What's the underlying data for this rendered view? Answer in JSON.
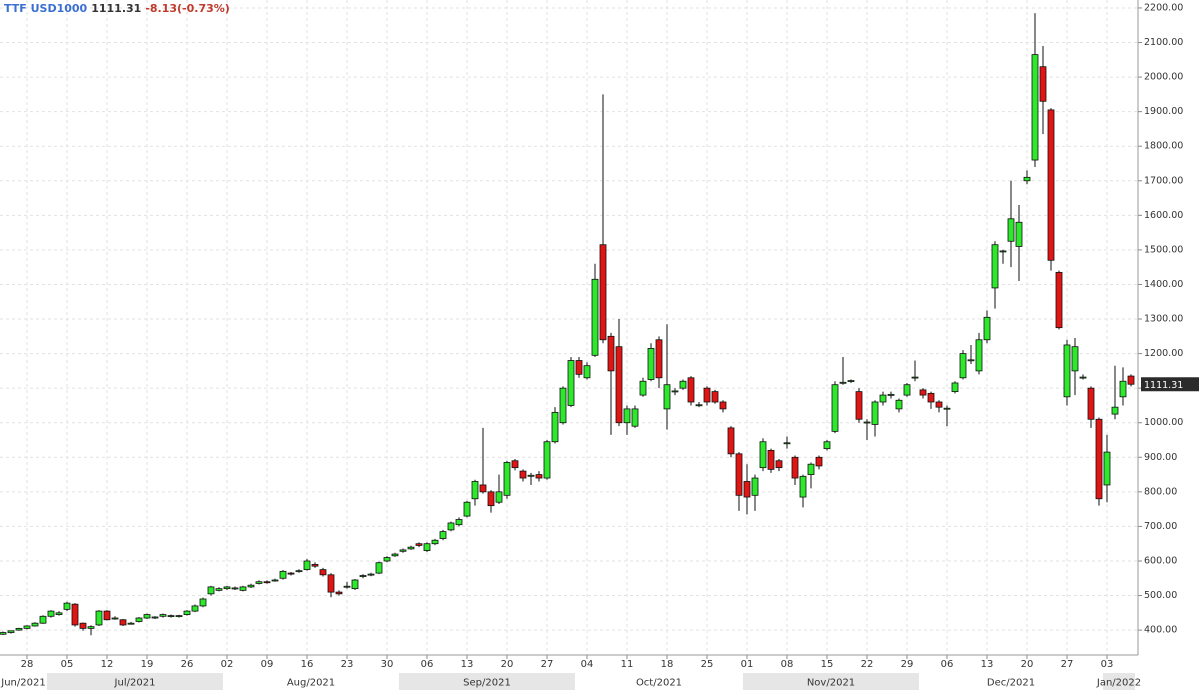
{
  "header": {
    "symbol": "TTF USD1000",
    "change": "-8.13(-0.73%)"
  },
  "chart_data": {
    "type": "candlestick",
    "x": [
      "2021-06-23",
      "2021-06-24",
      "2021-06-25",
      "2021-06-28",
      "2021-06-29",
      "2021-06-30",
      "2021-07-01",
      "2021-07-02",
      "2021-07-05",
      "2021-07-06",
      "2021-07-07",
      "2021-07-08",
      "2021-07-09",
      "2021-07-12",
      "2021-07-13",
      "2021-07-14",
      "2021-07-15",
      "2021-07-16",
      "2021-07-19",
      "2021-07-20",
      "2021-07-21",
      "2021-07-22",
      "2021-07-23",
      "2021-07-26",
      "2021-07-27",
      "2021-07-28",
      "2021-07-29",
      "2021-07-30",
      "2021-08-02",
      "2021-08-03",
      "2021-08-04",
      "2021-08-05",
      "2021-08-06",
      "2021-08-09",
      "2021-08-10",
      "2021-08-11",
      "2021-08-12",
      "2021-08-13",
      "2021-08-16",
      "2021-08-17",
      "2021-08-18",
      "2021-08-19",
      "2021-08-20",
      "2021-08-23",
      "2021-08-24",
      "2021-08-25",
      "2021-08-26",
      "2021-08-27",
      "2021-08-30",
      "2021-08-31",
      "2021-09-01",
      "2021-09-02",
      "2021-09-03",
      "2021-09-06",
      "2021-09-07",
      "2021-09-08",
      "2021-09-09",
      "2021-09-10",
      "2021-09-13",
      "2021-09-14",
      "2021-09-15",
      "2021-09-16",
      "2021-09-17",
      "2021-09-20",
      "2021-09-21",
      "2021-09-22",
      "2021-09-23",
      "2021-09-24",
      "2021-09-27",
      "2021-09-28",
      "2021-09-29",
      "2021-09-30",
      "2021-10-01",
      "2021-10-04",
      "2021-10-05",
      "2021-10-06",
      "2021-10-07",
      "2021-10-08",
      "2021-10-11",
      "2021-10-12",
      "2021-10-13",
      "2021-10-14",
      "2021-10-15",
      "2021-10-18",
      "2021-10-19",
      "2021-10-20",
      "2021-10-21",
      "2021-10-22",
      "2021-10-25",
      "2021-10-26",
      "2021-10-27",
      "2021-10-28",
      "2021-10-29",
      "2021-11-01",
      "2021-11-02",
      "2021-11-03",
      "2021-11-04",
      "2021-11-05",
      "2021-11-08",
      "2021-11-09",
      "2021-11-10",
      "2021-11-11",
      "2021-11-12",
      "2021-11-15",
      "2021-11-16",
      "2021-11-17",
      "2021-11-18",
      "2021-11-19",
      "2021-11-22",
      "2021-11-23",
      "2021-11-24",
      "2021-11-25",
      "2021-11-26",
      "2021-11-29",
      "2021-11-30",
      "2021-12-01",
      "2021-12-02",
      "2021-12-03",
      "2021-12-06",
      "2021-12-07",
      "2021-12-08",
      "2021-12-09",
      "2021-12-10",
      "2021-12-13",
      "2021-12-14",
      "2021-12-15",
      "2021-12-16",
      "2021-12-17",
      "2021-12-20",
      "2021-12-21",
      "2021-12-22",
      "2021-12-23",
      "2021-12-24",
      "2021-12-27",
      "2021-12-28",
      "2021-12-29",
      "2021-12-30",
      "2021-12-31",
      "2022-01-03",
      "2022-01-04",
      "2022-01-05",
      "2022-01-06"
    ],
    "series": [
      {
        "name": "TTF USD1000",
        "up_color": "#2ee82e",
        "down_color": "#e01515",
        "open": [
          388,
          393,
          400,
          405,
          412,
          420,
          440,
          445,
          460,
          475,
          420,
          405,
          415,
          455,
          435,
          430,
          420,
          425,
          435,
          435,
          440,
          440,
          440,
          445,
          455,
          470,
          505,
          515,
          520,
          520,
          515,
          525,
          535,
          540,
          545,
          550,
          565,
          570,
          575,
          590,
          575,
          560,
          510,
          525,
          520,
          555,
          560,
          565,
          600,
          615,
          628,
          635,
          650,
          630,
          650,
          665,
          690,
          705,
          730,
          780,
          820,
          800,
          770,
          790,
          890,
          860,
          845,
          850,
          840,
          945,
          1000,
          1050,
          1180,
          1130,
          1195,
          1515,
          1250,
          1220,
          1000,
          990,
          1080,
          1125,
          1240,
          1040,
          1090,
          1100,
          1130,
          1050,
          1100,
          1090,
          1060,
          985,
          910,
          830,
          790,
          870,
          920,
          890,
          940,
          900,
          785,
          850,
          900,
          925,
          975,
          1115,
          1120,
          1090,
          1000,
          995,
          1060,
          1080,
          1040,
          1080,
          1130,
          1095,
          1085,
          1060,
          1040,
          1090,
          1130,
          1180,
          1150,
          1240,
          1390,
          1495,
          1525,
          1510,
          1700,
          1760,
          2030,
          1905,
          1435,
          1075,
          1150,
          1130,
          1100,
          1010,
          820,
          1025,
          1075,
          1135
        ],
        "high": [
          396,
          399,
          407,
          414,
          423,
          443,
          458,
          455,
          482,
          478,
          422,
          414,
          458,
          458,
          440,
          432,
          424,
          438,
          448,
          440,
          448,
          445,
          444,
          458,
          474,
          494,
          528,
          524,
          528,
          526,
          528,
          534,
          544,
          544,
          549,
          574,
          568,
          576,
          606,
          596,
          580,
          565,
          515,
          540,
          548,
          562,
          566,
          598,
          614,
          624,
          636,
          644,
          654,
          654,
          664,
          690,
          714,
          726,
          774,
          835,
          985,
          805,
          850,
          890,
          895,
          865,
          855,
          860,
          950,
          1045,
          1105,
          1190,
          1190,
          1175,
          1460,
          1950,
          1260,
          1300,
          1050,
          1050,
          1130,
          1230,
          1250,
          1285,
          1100,
          1125,
          1135,
          1060,
          1105,
          1095,
          1065,
          990,
          915,
          880,
          850,
          955,
          925,
          895,
          960,
          905,
          850,
          885,
          905,
          950,
          1120,
          1190,
          1125,
          1100,
          1010,
          1065,
          1090,
          1090,
          1070,
          1115,
          1180,
          1100,
          1090,
          1065,
          1050,
          1120,
          1210,
          1225,
          1260,
          1325,
          1525,
          1500,
          1700,
          1630,
          1730,
          2185,
          2090,
          1910,
          1440,
          1240,
          1245,
          1140,
          1105,
          1015,
          965,
          1165,
          1160,
          1140
        ],
        "low": [
          386,
          390,
          398,
          402,
          410,
          418,
          436,
          442,
          455,
          410,
          398,
          385,
          412,
          428,
          430,
          412,
          416,
          422,
          432,
          432,
          436,
          436,
          436,
          442,
          452,
          466,
          500,
          512,
          516,
          516,
          512,
          522,
          532,
          534,
          540,
          546,
          558,
          566,
          572,
          580,
          555,
          495,
          500,
          520,
          516,
          550,
          556,
          562,
          596,
          612,
          624,
          632,
          640,
          626,
          646,
          660,
          686,
          700,
          726,
          760,
          795,
          740,
          765,
          780,
          862,
          830,
          820,
          830,
          835,
          940,
          995,
          1045,
          1130,
          1125,
          1190,
          1230,
          965,
          990,
          965,
          985,
          1075,
          1120,
          1100,
          980,
          1080,
          1095,
          1050,
          1045,
          1050,
          1055,
          1030,
          900,
          745,
          735,
          745,
          860,
          855,
          860,
          925,
          820,
          755,
          810,
          865,
          920,
          970,
          1110,
          1115,
          1000,
          950,
          960,
          1050,
          1070,
          1030,
          1075,
          1120,
          1070,
          1040,
          1030,
          990,
          1085,
          1125,
          1170,
          1140,
          1230,
          1330,
          1460,
          1450,
          1410,
          1690,
          1740,
          1835,
          1440,
          1270,
          1050,
          1080,
          1125,
          985,
          760,
          770,
          1010,
          1050,
          1105
        ],
        "close": [
          393,
          398,
          405,
          412,
          420,
          440,
          455,
          450,
          478,
          415,
          405,
          410,
          455,
          430,
          435,
          415,
          420,
          435,
          445,
          438,
          445,
          442,
          442,
          455,
          470,
          490,
          525,
          520,
          525,
          522,
          525,
          530,
          540,
          538,
          545,
          570,
          562,
          572,
          600,
          585,
          560,
          510,
          505,
          527,
          545,
          558,
          562,
          595,
          610,
          620,
          632,
          640,
          645,
          650,
          660,
          685,
          710,
          720,
          770,
          830,
          800,
          760,
          800,
          885,
          870,
          840,
          848,
          840,
          945,
          1030,
          1100,
          1180,
          1140,
          1165,
          1415,
          1240,
          1150,
          1000,
          1040,
          1040,
          1120,
          1215,
          1130,
          1110,
          1092,
          1120,
          1060,
          1052,
          1060,
          1060,
          1040,
          910,
          790,
          785,
          840,
          945,
          865,
          870,
          942,
          840,
          845,
          880,
          875,
          945,
          1110,
          1117,
          1122,
          1010,
          1002,
          1060,
          1080,
          1082,
          1065,
          1110,
          1132,
          1080,
          1060,
          1045,
          1042,
          1115,
          1200,
          1182,
          1240,
          1305,
          1515,
          1497,
          1590,
          1580,
          1710,
          2065,
          1930,
          1470,
          1275,
          1225,
          1220,
          1132,
          1010,
          780,
          915,
          1045,
          1120,
          1111.31
        ]
      }
    ],
    "ylim": [
      328,
      2223
    ],
    "yticks": [
      {
        "value": 400,
        "label": "400.00"
      },
      {
        "value": 500,
        "label": "500.00"
      },
      {
        "value": 600,
        "label": "600.00"
      },
      {
        "value": 700,
        "label": "700.00"
      },
      {
        "value": 800,
        "label": "800.00"
      },
      {
        "value": 900,
        "label": "900.00"
      },
      {
        "value": 1000,
        "label": "1000.00"
      },
      {
        "value": 1100,
        "label": "1100.00"
      },
      {
        "value": 1200,
        "label": "1200.00"
      },
      {
        "value": 1300,
        "label": "1300.00"
      },
      {
        "value": 1400,
        "label": "1400.00"
      },
      {
        "value": 1500,
        "label": "1500.00"
      },
      {
        "value": 1600,
        "label": "1600.00"
      },
      {
        "value": 1700,
        "label": "1700.00"
      },
      {
        "value": 1800,
        "label": "1800.00"
      },
      {
        "value": 1900,
        "label": "1900.00"
      },
      {
        "value": 2000,
        "label": "2000.00"
      },
      {
        "value": 2100,
        "label": "2100.00"
      },
      {
        "value": 2200,
        "label": "2200.00"
      }
    ],
    "xticks": [
      {
        "value": "2021-06-28",
        "label": "28"
      },
      {
        "value": "2021-07-05",
        "label": "05"
      },
      {
        "value": "2021-07-12",
        "label": "12"
      },
      {
        "value": "2021-07-19",
        "label": "19"
      },
      {
        "value": "2021-07-26",
        "label": "26"
      },
      {
        "value": "2021-08-02",
        "label": "02"
      },
      {
        "value": "2021-08-09",
        "label": "09"
      },
      {
        "value": "2021-08-16",
        "label": "16"
      },
      {
        "value": "2021-08-23",
        "label": "23"
      },
      {
        "value": "2021-08-30",
        "label": "30"
      },
      {
        "value": "2021-09-06",
        "label": "06"
      },
      {
        "value": "2021-09-13",
        "label": "13"
      },
      {
        "value": "2021-09-20",
        "label": "20"
      },
      {
        "value": "2021-09-27",
        "label": "27"
      },
      {
        "value": "2021-10-04",
        "label": "04"
      },
      {
        "value": "2021-10-11",
        "label": "11"
      },
      {
        "value": "2021-10-18",
        "label": "18"
      },
      {
        "value": "2021-10-25",
        "label": "25"
      },
      {
        "value": "2021-11-01",
        "label": "01"
      },
      {
        "value": "2021-11-08",
        "label": "08"
      },
      {
        "value": "2021-11-15",
        "label": "15"
      },
      {
        "value": "2021-11-22",
        "label": "22"
      },
      {
        "value": "2021-11-29",
        "label": "29"
      },
      {
        "value": "2021-12-06",
        "label": "06"
      },
      {
        "value": "2021-12-13",
        "label": "13"
      },
      {
        "value": "2021-12-20",
        "label": "20"
      },
      {
        "value": "2021-12-27",
        "label": "27"
      },
      {
        "value": "2022-01-03",
        "label": "03"
      }
    ],
    "month_ticks": [
      {
        "value": "2021-06-23",
        "label": "Jun/2021"
      },
      {
        "value": "2021-07-01",
        "label": "Jul/2021"
      },
      {
        "value": "2021-08-02",
        "label": "Aug/2021"
      },
      {
        "value": "2021-09-01",
        "label": "Sep/2021"
      },
      {
        "value": "2021-10-01",
        "label": "Oct/2021"
      },
      {
        "value": "2021-11-01",
        "label": "Nov/2021"
      },
      {
        "value": "2021-12-01",
        "label": "Dec/2021"
      },
      {
        "value": "2022-01-03",
        "label": "Jan/2022"
      }
    ],
    "grid": true
  }
}
